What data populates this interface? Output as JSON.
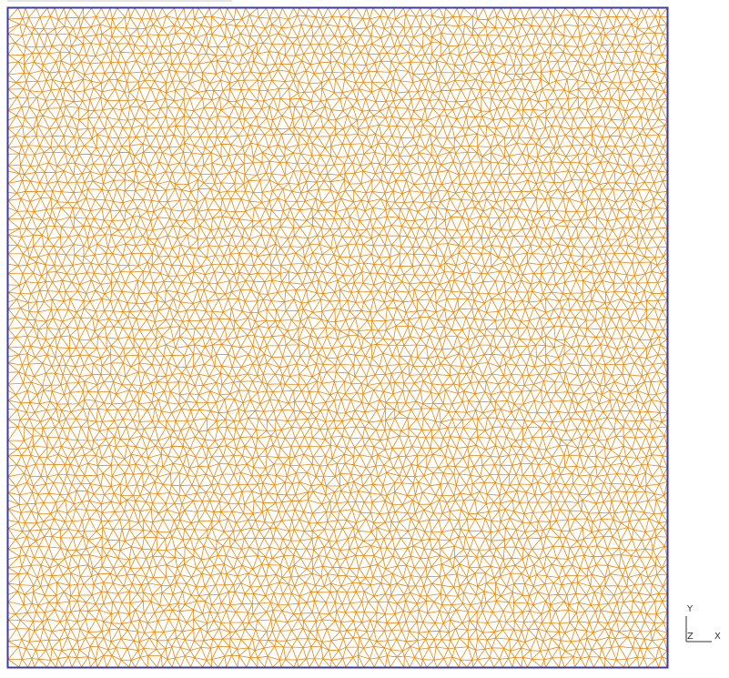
{
  "viewport": {
    "mesh_color": "#e08a10",
    "boundary_color": "#3a3aaa",
    "background": "#ffffff"
  },
  "triad": {
    "y_label": "Y",
    "z_label": "Z",
    "x_label": "X",
    "color": "#333333"
  }
}
